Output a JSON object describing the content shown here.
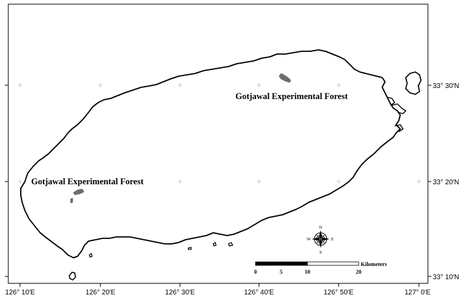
{
  "map": {
    "longitude_labels": [
      "126° 10′E",
      "126° 20′E",
      "126° 30′E",
      "126° 40′E",
      "126° 50′E",
      "127° 0′E"
    ],
    "latitude_labels": [
      "33° 30′N",
      "33° 20′N",
      "33° 10′N"
    ],
    "forest_labels": [
      "Gotjawal Experimental Forest",
      "Gotjawal Experimental Forest"
    ],
    "scale_bar": {
      "unit_label": "Kilometers",
      "tick_labels": [
        "0",
        "5",
        "10",
        "20"
      ]
    },
    "compass": {
      "north": "N",
      "south": "S",
      "east": "E",
      "west": "W"
    },
    "colors": {
      "coastline": "#000000",
      "forest_patch": "#6e6e6e",
      "graticule": "#bdbdbd",
      "frame": "#000000"
    }
  }
}
